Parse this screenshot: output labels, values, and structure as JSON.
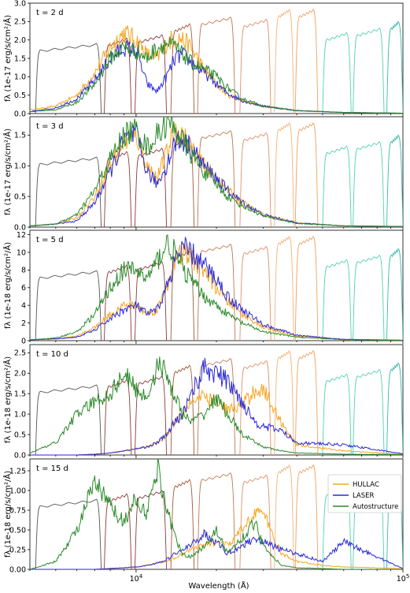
{
  "figure": {
    "xlabel": "Wavelength (Å)",
    "xscale": "log",
    "xlim": [
      4000,
      100000
    ],
    "xticks": [
      {
        "value": 10000,
        "label": "10^4"
      },
      {
        "value": 100000,
        "label": "10^5"
      }
    ]
  },
  "legend": {
    "placement": "top-right of bottom panel",
    "entries": [
      {
        "name": "HULLAC",
        "color": "#f5a623"
      },
      {
        "name": "LASER",
        "color": "#2b2bd9"
      },
      {
        "name": "Autostructure",
        "color": "#2a8a2a"
      }
    ]
  },
  "filter_colors": [
    "#555555",
    "#8b3a3a",
    "#a05a3a",
    "#c07850",
    "#e0906a",
    "#f5b27a",
    "#f0a060",
    "#4fd1b0",
    "#3ab8b0"
  ],
  "chart_data": [
    {
      "type": "line",
      "panel_label": "t = 2 d",
      "ylabel": "fλ (1e-17 erg/s/cm²/Å)",
      "ylim": [
        0,
        3.0
      ],
      "yticks": [
        0.0,
        0.5,
        1.0,
        1.5,
        2.0,
        2.5,
        3.0
      ],
      "ytick_labels": [
        "0.0",
        "0.5",
        "1.0",
        "1.5",
        "2.0",
        "2.5",
        "3.0"
      ],
      "series": [
        {
          "name": "HULLAC",
          "color": "#f5a623",
          "x": [
            4000,
            5000,
            6000,
            7000,
            8000,
            9000,
            10000,
            11000,
            12000,
            13000,
            14000,
            15000,
            16000,
            18000,
            20000,
            22000,
            25000,
            30000,
            40000,
            60000,
            100000
          ],
          "y": [
            0.1,
            0.2,
            0.5,
            1.1,
            1.8,
            2.2,
            2.0,
            1.6,
            1.5,
            1.9,
            2.1,
            2.0,
            1.8,
            1.2,
            0.8,
            0.5,
            0.35,
            0.2,
            0.08,
            0.03,
            0.01
          ]
        },
        {
          "name": "LASER",
          "color": "#2b2bd9",
          "x": [
            4000,
            5000,
            6000,
            7000,
            8000,
            9000,
            10000,
            11000,
            12000,
            13000,
            14000,
            15000,
            16000,
            18000,
            20000,
            22000,
            25000,
            30000,
            40000,
            60000,
            100000
          ],
          "y": [
            0.05,
            0.15,
            0.4,
            0.9,
            1.5,
            1.8,
            1.7,
            0.8,
            0.6,
            1.0,
            1.5,
            1.6,
            1.4,
            1.1,
            0.8,
            0.55,
            0.35,
            0.2,
            0.08,
            0.03,
            0.01
          ]
        },
        {
          "name": "Autostructure",
          "color": "#2a8a2a",
          "x": [
            4000,
            5000,
            6000,
            7000,
            8000,
            9000,
            10000,
            11000,
            12000,
            13000,
            14000,
            15000,
            16000,
            18000,
            20000,
            22000,
            25000,
            30000,
            40000,
            60000,
            100000
          ],
          "y": [
            0.05,
            0.1,
            0.3,
            0.8,
            1.5,
            1.8,
            1.7,
            1.5,
            1.8,
            1.9,
            1.8,
            1.6,
            1.4,
            1.2,
            1.0,
            0.7,
            0.4,
            0.2,
            0.08,
            0.03,
            0.01
          ]
        }
      ]
    },
    {
      "type": "line",
      "panel_label": "t = 3 d",
      "ylabel": "fλ (1e-17 erg/s/cm²/Å)",
      "ylim": [
        0,
        1.8
      ],
      "yticks": [
        0.0,
        0.5,
        1.0,
        1.5
      ],
      "ytick_labels": [
        "0.0",
        "0.5",
        "1.0",
        "1.5"
      ],
      "series": [
        {
          "name": "HULLAC",
          "color": "#f5a623",
          "x": [
            4000,
            5000,
            6000,
            7000,
            8000,
            9000,
            10000,
            11000,
            12000,
            13000,
            14000,
            15000,
            16000,
            18000,
            20000,
            22000,
            25000,
            30000,
            40000,
            60000,
            100000
          ],
          "y": [
            0.02,
            0.05,
            0.15,
            0.5,
            1.0,
            1.4,
            1.5,
            1.0,
            0.8,
            1.2,
            1.6,
            1.5,
            1.3,
            1.0,
            0.8,
            0.6,
            0.4,
            0.2,
            0.07,
            0.02,
            0.01
          ]
        },
        {
          "name": "LASER",
          "color": "#2b2bd9",
          "x": [
            4000,
            5000,
            6000,
            7000,
            8000,
            9000,
            10000,
            11000,
            12000,
            13000,
            14000,
            15000,
            16000,
            18000,
            20000,
            22000,
            25000,
            30000,
            40000,
            60000,
            100000
          ],
          "y": [
            0.02,
            0.05,
            0.1,
            0.4,
            0.9,
            1.4,
            1.5,
            0.9,
            0.7,
            1.0,
            1.4,
            1.4,
            1.3,
            1.0,
            0.8,
            0.6,
            0.4,
            0.2,
            0.07,
            0.02,
            0.01
          ]
        },
        {
          "name": "Autostructure",
          "color": "#2a8a2a",
          "x": [
            4000,
            5000,
            6000,
            7000,
            8000,
            9000,
            10000,
            11000,
            12000,
            13000,
            14000,
            15000,
            16000,
            18000,
            20000,
            22000,
            25000,
            30000,
            40000,
            60000,
            100000
          ],
          "y": [
            0.02,
            0.05,
            0.2,
            0.6,
            1.1,
            1.5,
            1.6,
            1.3,
            1.5,
            1.7,
            1.6,
            1.4,
            1.2,
            0.9,
            0.7,
            0.5,
            0.35,
            0.18,
            0.06,
            0.02,
            0.01
          ]
        }
      ]
    },
    {
      "type": "line",
      "panel_label": "t = 5 d",
      "ylabel": "fλ (1e-18 erg/s/cm²/Å)",
      "ylim": [
        0,
        12.5
      ],
      "yticks": [
        0,
        2,
        4,
        6,
        8,
        10,
        12
      ],
      "ytick_labels": [
        "0",
        "2",
        "4",
        "6",
        "8",
        "10",
        "12"
      ],
      "series": [
        {
          "name": "HULLAC",
          "color": "#f5a623",
          "x": [
            4000,
            5000,
            6000,
            7000,
            8000,
            9000,
            10000,
            11000,
            12000,
            13000,
            14000,
            15000,
            16000,
            18000,
            20000,
            22000,
            25000,
            30000,
            40000,
            60000,
            100000
          ],
          "y": [
            0.1,
            0.2,
            0.5,
            1.5,
            3.0,
            4.0,
            4.0,
            3.0,
            3.5,
            6.0,
            9.0,
            10.0,
            9.5,
            8.0,
            6.0,
            4.5,
            3.0,
            1.5,
            0.5,
            0.15,
            0.05
          ]
        },
        {
          "name": "LASER",
          "color": "#2b2bd9",
          "x": [
            4000,
            5000,
            6000,
            7000,
            8000,
            9000,
            10000,
            11000,
            12000,
            13000,
            14000,
            15000,
            16000,
            18000,
            20000,
            22000,
            25000,
            30000,
            40000,
            60000,
            100000
          ],
          "y": [
            0.1,
            0.2,
            0.4,
            1.2,
            2.5,
            3.5,
            4.0,
            3.0,
            3.5,
            6.0,
            9.0,
            10.5,
            10.0,
            8.5,
            7.0,
            5.0,
            3.5,
            1.8,
            0.6,
            0.15,
            0.05
          ]
        },
        {
          "name": "Autostructure",
          "color": "#2a8a2a",
          "x": [
            4000,
            5000,
            6000,
            7000,
            8000,
            9000,
            10000,
            11000,
            12000,
            13000,
            14000,
            15000,
            16000,
            18000,
            20000,
            22000,
            25000,
            30000,
            40000,
            60000,
            100000
          ],
          "y": [
            0.1,
            0.3,
            1.0,
            3.0,
            6.0,
            8.0,
            8.0,
            7.0,
            9.0,
            11.0,
            10.0,
            8.0,
            7.0,
            5.0,
            4.0,
            3.0,
            2.0,
            1.0,
            0.4,
            0.12,
            0.04
          ]
        }
      ]
    },
    {
      "type": "line",
      "panel_label": "t = 10 d",
      "ylabel": "fλ (1e-18 erg/s/cm²/Å)",
      "ylim": [
        0,
        2.7
      ],
      "yticks": [
        0.0,
        0.5,
        1.0,
        1.5,
        2.0,
        2.5
      ],
      "ytick_labels": [
        "0.0",
        "0.5",
        "1.0",
        "1.5",
        "2.0",
        "2.5"
      ],
      "series": [
        {
          "name": "HULLAC",
          "color": "#f5a623",
          "x": [
            4000,
            5000,
            6000,
            7000,
            8000,
            9000,
            10000,
            11000,
            12000,
            13000,
            14000,
            15000,
            16000,
            18000,
            20000,
            22000,
            25000,
            28000,
            30000,
            35000,
            40000,
            60000,
            100000
          ],
          "y": [
            0.0,
            0.0,
            0.0,
            0.02,
            0.05,
            0.1,
            0.15,
            0.2,
            0.3,
            0.5,
            0.8,
            1.1,
            1.3,
            1.4,
            1.3,
            1.1,
            1.2,
            1.6,
            1.6,
            0.8,
            0.25,
            0.1,
            0.02
          ]
        },
        {
          "name": "LASER",
          "color": "#2b2bd9",
          "x": [
            4000,
            5000,
            6000,
            7000,
            8000,
            9000,
            10000,
            11000,
            12000,
            13000,
            14000,
            15000,
            16000,
            18000,
            20000,
            22000,
            25000,
            28000,
            30000,
            35000,
            40000,
            60000,
            100000
          ],
          "y": [
            0.0,
            0.0,
            0.0,
            0.02,
            0.05,
            0.1,
            0.15,
            0.2,
            0.3,
            0.5,
            0.8,
            1.0,
            1.5,
            2.1,
            2.0,
            1.8,
            1.3,
            0.8,
            0.7,
            0.6,
            0.3,
            0.25,
            0.03
          ]
        },
        {
          "name": "Autostructure",
          "color": "#2a8a2a",
          "x": [
            4000,
            5000,
            6000,
            7000,
            8000,
            9000,
            10000,
            11000,
            12000,
            13000,
            14000,
            15000,
            16000,
            18000,
            20000,
            22000,
            25000,
            28000,
            30000,
            35000,
            40000,
            60000,
            100000
          ],
          "y": [
            0.05,
            0.3,
            1.0,
            1.3,
            1.5,
            2.0,
            1.6,
            1.4,
            2.2,
            2.0,
            1.4,
            1.0,
            0.8,
            1.0,
            1.4,
            1.0,
            0.5,
            0.3,
            0.2,
            0.1,
            0.05,
            0.02,
            0.01
          ]
        }
      ]
    },
    {
      "type": "line",
      "panel_label": "t = 15 d",
      "ylabel": "fλ (1e-18 erg/s/cm²/Å)",
      "ylim": [
        0,
        1.4
      ],
      "yticks": [
        0.0,
        0.25,
        0.5,
        0.75,
        1.0,
        1.25
      ],
      "ytick_labels": [
        "0.00",
        "0.25",
        "0.50",
        "0.75",
        "1.00",
        "1.25"
      ],
      "series": [
        {
          "name": "HULLAC",
          "color": "#f5a623",
          "x": [
            4000,
            5000,
            6000,
            7000,
            8000,
            9000,
            10000,
            11000,
            12000,
            13000,
            14000,
            15000,
            16000,
            18000,
            20000,
            22000,
            25000,
            28000,
            30000,
            35000,
            40000,
            50000,
            60000,
            100000
          ],
          "y": [
            0.0,
            0.0,
            0.0,
            0.0,
            0.01,
            0.02,
            0.03,
            0.05,
            0.08,
            0.1,
            0.15,
            0.2,
            0.25,
            0.3,
            0.35,
            0.3,
            0.5,
            0.75,
            0.7,
            0.2,
            0.1,
            0.05,
            0.03,
            0.01
          ]
        },
        {
          "name": "LASER",
          "color": "#2b2bd9",
          "x": [
            4000,
            5000,
            6000,
            7000,
            8000,
            9000,
            10000,
            11000,
            12000,
            13000,
            14000,
            15000,
            16000,
            18000,
            20000,
            22000,
            25000,
            28000,
            30000,
            35000,
            40000,
            50000,
            60000,
            100000
          ],
          "y": [
            0.0,
            0.0,
            0.0,
            0.0,
            0.01,
            0.02,
            0.03,
            0.05,
            0.08,
            0.12,
            0.2,
            0.25,
            0.3,
            0.45,
            0.35,
            0.2,
            0.3,
            0.4,
            0.35,
            0.25,
            0.2,
            0.1,
            0.35,
            0.01
          ]
        },
        {
          "name": "Autostructure",
          "color": "#2a8a2a",
          "x": [
            4000,
            5000,
            6000,
            7000,
            8000,
            9000,
            10000,
            11000,
            12000,
            13000,
            14000,
            15000,
            16000,
            18000,
            20000,
            22000,
            25000,
            28000,
            30000,
            35000,
            40000,
            50000,
            60000,
            100000
          ],
          "y": [
            0.0,
            0.1,
            0.5,
            1.1,
            0.8,
            0.6,
            0.9,
            0.7,
            1.3,
            0.8,
            0.4,
            0.2,
            0.15,
            0.3,
            0.5,
            0.2,
            0.4,
            0.6,
            0.3,
            0.05,
            0.02,
            0.01,
            0.0,
            0.0
          ]
        }
      ]
    }
  ]
}
